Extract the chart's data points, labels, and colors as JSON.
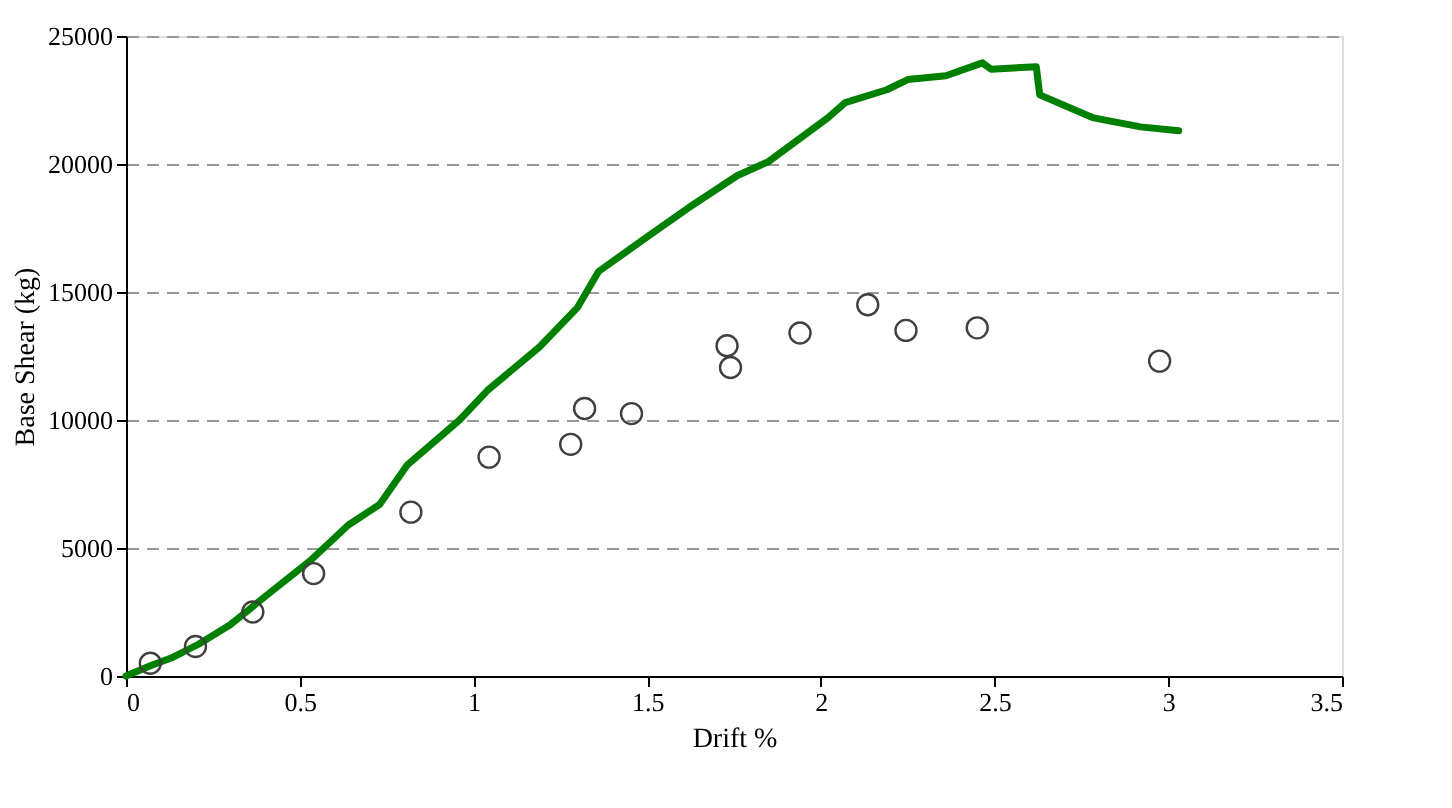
{
  "chart_data": {
    "type": "scatter",
    "xlabel": "Drift %",
    "ylabel": "Base Shear (kg)",
    "xlim": [
      0,
      3.5
    ],
    "xticks": [
      0,
      0.5,
      1,
      1.5,
      2,
      2.5,
      3,
      3.5
    ],
    "ylim": [
      0,
      25000
    ],
    "yticks": [
      0,
      5000,
      10000,
      15000,
      20000,
      25000
    ],
    "grid": "y",
    "series": [
      {
        "type": "line",
        "color": "#008000",
        "marker": "none",
        "line_style": "solid",
        "x": [
          0,
          0.07,
          0.13,
          0.21,
          0.3,
          0.4,
          0.53,
          0.64,
          0.73,
          0.81,
          0.96,
          1.04,
          1.19,
          1.3,
          1.36,
          1.5,
          1.62,
          1.76,
          1.85,
          2.02,
          2.07,
          2.19,
          2.25,
          2.36,
          2.465,
          2.49,
          2.62,
          2.63,
          2.785,
          2.92,
          3.03
        ],
        "values": [
          0,
          400,
          700,
          1250,
          2000,
          3100,
          4500,
          5900,
          6700,
          8250,
          10000,
          11150,
          12850,
          14400,
          15800,
          17150,
          18300,
          19550,
          20100,
          21800,
          22400,
          22900,
          23300,
          23450,
          23950,
          23700,
          23800,
          22700,
          21800,
          21450,
          21300
        ]
      },
      {
        "color": "#404040",
        "marker": "circle",
        "x": [
          0.07,
          0.2,
          0.365,
          0.54,
          0.82,
          1.045,
          1.28,
          1.32,
          1.455,
          1.73,
          1.74,
          1.94,
          2.135,
          2.245,
          2.45,
          2.975
        ],
        "values": [
          500,
          1150,
          2500,
          4000,
          6400,
          8550,
          9050,
          10450,
          10250,
          12900,
          12050,
          13400,
          14500,
          13500,
          13600,
          12300
        ]
      }
    ]
  }
}
